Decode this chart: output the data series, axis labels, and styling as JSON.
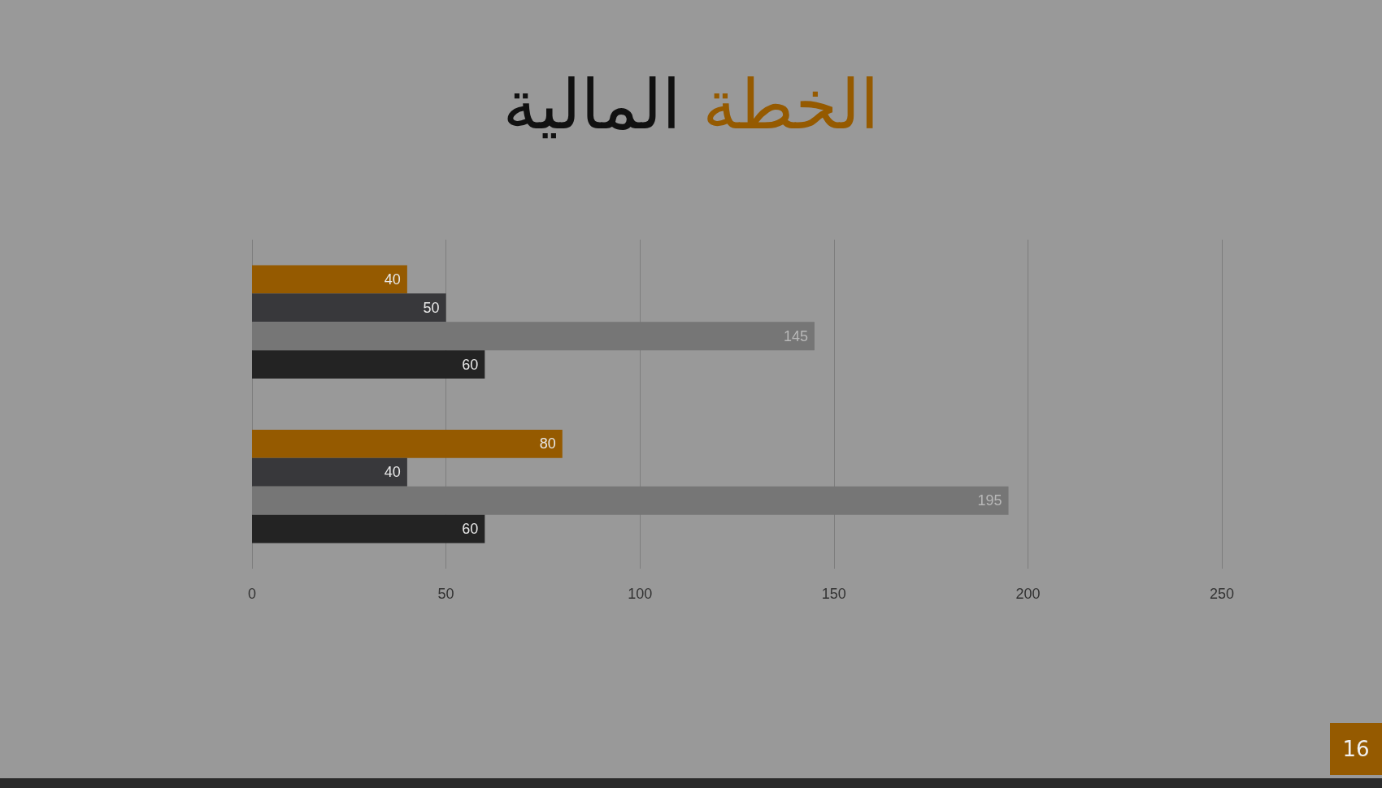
{
  "chart_data": {
    "type": "bar",
    "orientation": "horizontal",
    "title": "الخطة المالية",
    "categories": [
      null,
      null
    ],
    "series": [
      {
        "color": "#955a00",
        "values": [
          40,
          80
        ]
      },
      {
        "color": "#38383b",
        "values": [
          50,
          40
        ]
      },
      {
        "color": "#767676",
        "values": [
          145,
          195
        ]
      },
      {
        "color": "#232323",
        "values": [
          60,
          60
        ]
      }
    ],
    "xlim": [
      0,
      250
    ],
    "xticks": [
      0,
      50,
      100,
      150,
      200,
      250
    ],
    "grid": "x",
    "data_labels": true,
    "annotations": [
      "16"
    ]
  }
}
